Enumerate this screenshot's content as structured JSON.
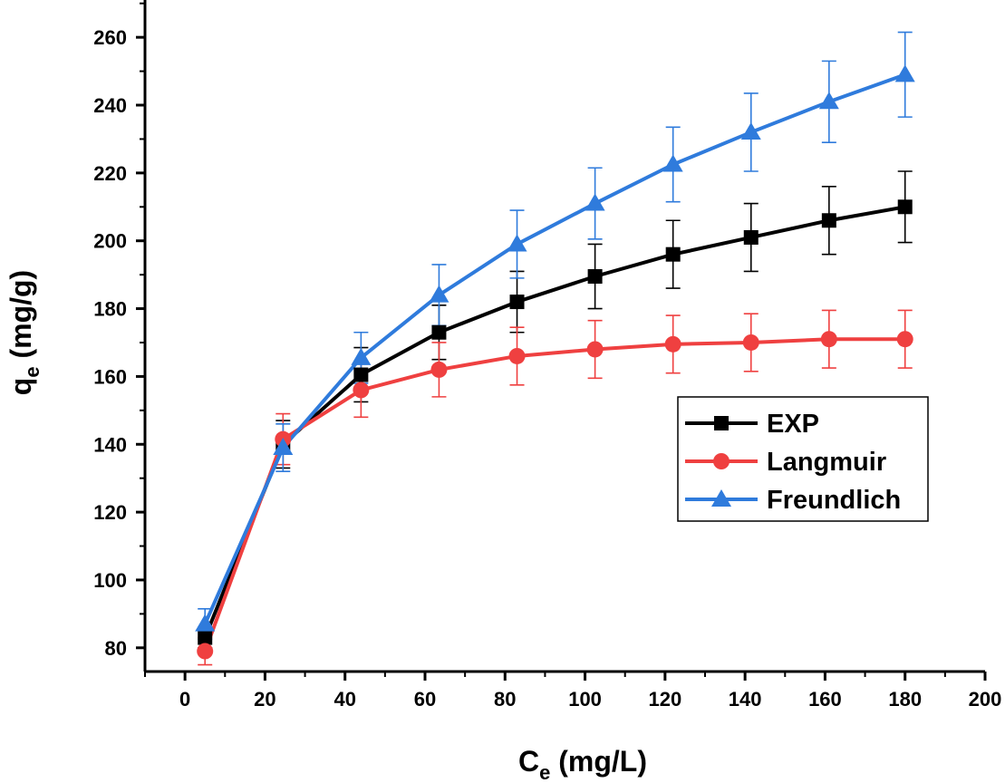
{
  "chart_data": {
    "type": "line",
    "title": "",
    "xlabel": {
      "main": "C",
      "sub": "e",
      "unit": " (mg/L)"
    },
    "ylabel": {
      "main": "q",
      "sub": "e",
      "unit": " (mg/g)"
    },
    "xlim": [
      -10,
      200
    ],
    "ylim": [
      73,
      271
    ],
    "xticks": [
      0,
      20,
      40,
      60,
      80,
      100,
      120,
      140,
      160,
      180,
      200
    ],
    "yticks": [
      80,
      100,
      120,
      140,
      160,
      180,
      200,
      220,
      240,
      260
    ],
    "x": [
      5,
      24.5,
      44,
      63.5,
      83,
      102.5,
      122,
      141.5,
      161,
      180
    ],
    "legend_position": "center-right",
    "series": [
      {
        "name": "EXP",
        "color": "#000000",
        "marker": "square",
        "values": [
          83,
          140,
          160.5,
          173,
          182,
          189.5,
          196,
          201,
          206,
          210
        ],
        "errors": [
          3,
          7,
          8,
          8,
          9,
          9.5,
          10,
          10,
          10,
          10.5
        ]
      },
      {
        "name": "Langmuir",
        "color": "#ef4040",
        "marker": "circle",
        "values": [
          79,
          141.5,
          156,
          162,
          166,
          168,
          169.5,
          170,
          171,
          171
        ],
        "errors": [
          4,
          7.5,
          8,
          8,
          8.5,
          8.5,
          8.5,
          8.5,
          8.5,
          8.5
        ]
      },
      {
        "name": "Freundlich",
        "color": "#2f7bdc",
        "marker": "triangle",
        "values": [
          87,
          139,
          165.5,
          184,
          199,
          211,
          222.5,
          232,
          241,
          249
        ],
        "errors": [
          4.5,
          7,
          7.5,
          9,
          10,
          10.5,
          11,
          11.5,
          12,
          12.5
        ]
      }
    ]
  }
}
